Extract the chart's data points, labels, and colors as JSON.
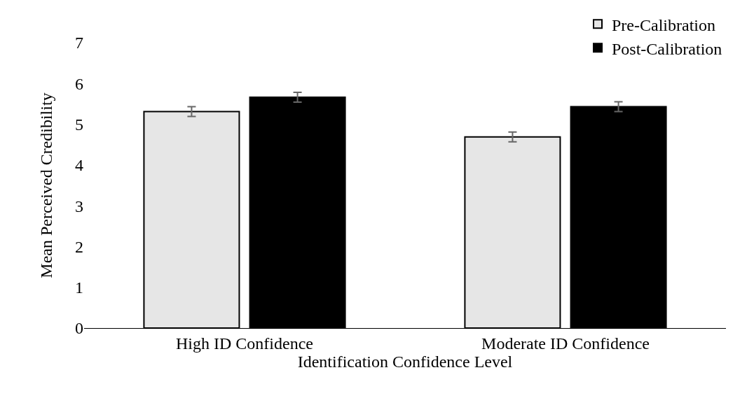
{
  "chart_data": {
    "type": "bar",
    "xlabel": "Identification Confidence Level",
    "ylabel": "Mean Perceived Credibility",
    "categories": [
      "High ID Confidence",
      "Moderate ID Confidence"
    ],
    "series": [
      {
        "name": "Pre-Calibration",
        "color": "#e6e6e6",
        "values": [
          5.31,
          4.69
        ],
        "errors": [
          0.12,
          0.12
        ]
      },
      {
        "name": "Post-Calibration",
        "color": "#000000",
        "values": [
          5.66,
          5.43
        ],
        "errors": [
          0.12,
          0.12
        ]
      }
    ],
    "ylim": [
      0,
      7
    ],
    "yticks": [
      0,
      1,
      2,
      3,
      4,
      5,
      6,
      7
    ],
    "grid": false,
    "legend": "top right"
  }
}
